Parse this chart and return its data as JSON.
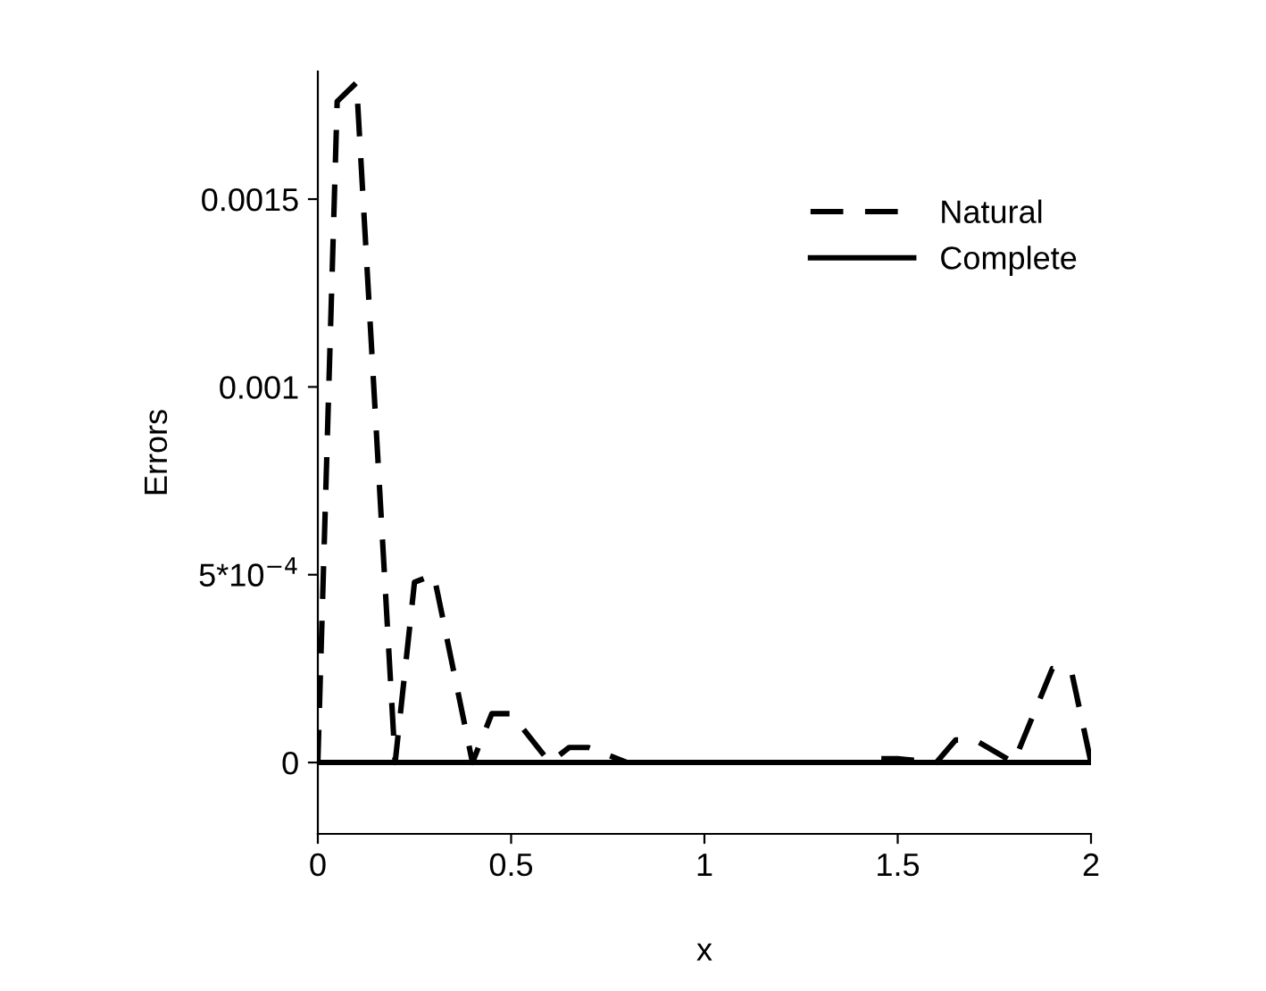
{
  "chart_data": {
    "type": "line",
    "xlabel": "x",
    "ylabel": "Errors",
    "legend": "top right",
    "grid": false,
    "xlim": [
      0,
      2
    ],
    "ylim": [
      -0.00019,
      0.00184
    ],
    "xticks": [
      0,
      0.5,
      1,
      1.5,
      2
    ],
    "yticks": [
      0,
      {
        "value": 0.0005,
        "label": "5*10$^{−4}$"
      },
      0.001,
      0.0015
    ],
    "series": [
      {
        "name": "Natural",
        "color": "#000000",
        "line_style": "dashed",
        "x": [
          0,
          0.05,
          0.1,
          0.2,
          0.25,
          0.3,
          0.4,
          0.45,
          0.5,
          0.6,
          0.65,
          0.7,
          0.8,
          0.9,
          1.0,
          1.1,
          1.2,
          1.3,
          1.4,
          1.45,
          1.5,
          1.6,
          1.65,
          1.7,
          1.8,
          1.9,
          1.95,
          2.0
        ],
        "values": [
          0,
          0.00176,
          0.00181,
          0,
          0.00048,
          0.0005,
          0,
          0.00013,
          0.00013,
          0,
          4e-05,
          4e-05,
          0,
          0,
          0,
          0,
          0,
          0,
          0,
          1e-05,
          1e-05,
          0,
          6e-05,
          6e-05,
          0,
          0.00025,
          0.00024,
          0
        ]
      },
      {
        "name": "Complete",
        "color": "#000000",
        "line_style": "solid",
        "x": [
          0,
          0.5,
          1.0,
          1.5,
          2.0
        ],
        "values": [
          0,
          0,
          0,
          0,
          0
        ]
      }
    ]
  }
}
